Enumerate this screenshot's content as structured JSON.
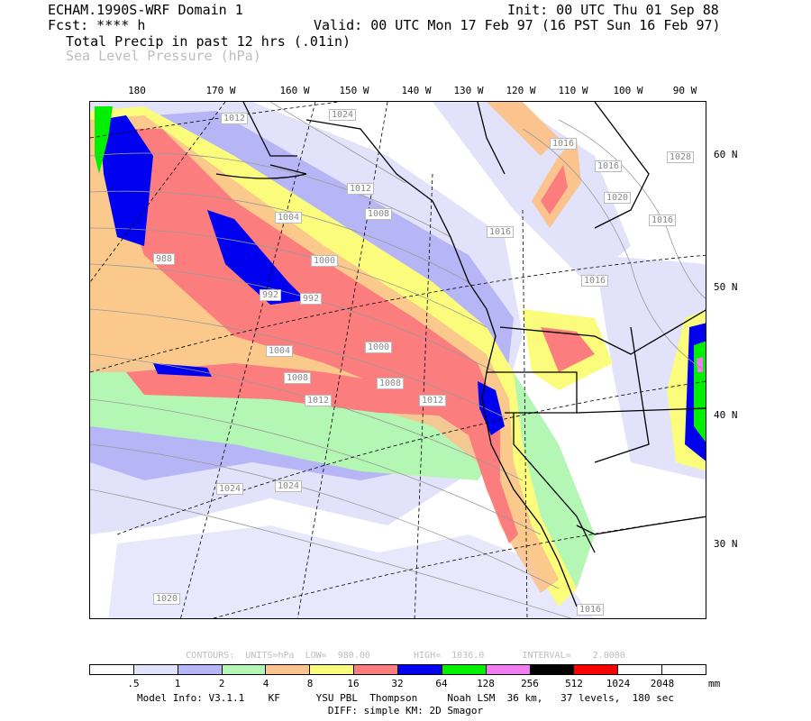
{
  "header": {
    "model": "ECHAM.1990S-WRF Domain 1",
    "init": "Init: 00 UTC Thu 01 Sep 88",
    "fcst": "Fcst: **** h",
    "valid": "Valid: 00 UTC Mon 17 Feb 97 (16 PST Sun 16 Feb 97)",
    "field1": "Total Precip in past 12 hrs (.01in)",
    "field2": "Sea Level Pressure (hPa)"
  },
  "lon_labels": [
    "180",
    "170 W",
    "160 W",
    "150 W",
    "140 W",
    "130 W",
    "120 W",
    "110 W",
    "100 W",
    "90 W"
  ],
  "lat_labels": [
    "60 N",
    "50 N",
    "40 N",
    "30 N"
  ],
  "pressure_labels": [
    "1024",
    "1012",
    "1016",
    "1016",
    "1028",
    "1012",
    "1008",
    "1004",
    "988",
    "992",
    "992",
    "1000",
    "1016",
    "1016",
    "1004",
    "1000",
    "1008",
    "1008",
    "1012",
    "1012",
    "1024",
    "1024",
    "1020",
    "1016",
    "1020",
    "1016"
  ],
  "contour_info": "CONTOURS:  UNITS=hPa  LOW=  980.00        HIGH=  1036.0       INTERVAL=    2.0000",
  "colorbar": {
    "colors": [
      "#ffffff",
      "#e2e2fb",
      "#b6b6f6",
      "#b4f6b4",
      "#fbc38e",
      "#fbfb7c",
      "#fb7d7d",
      "#0000f0",
      "#00f000",
      "#f07df0",
      "#000000",
      "#fb0000",
      "#ffffff",
      "#ffffff"
    ],
    "ticks": [
      ".5",
      "1",
      "2",
      "4",
      "8",
      "16",
      "32",
      "64",
      "128",
      "256",
      "512",
      "1024",
      "2048"
    ],
    "units": "mm"
  },
  "model_info": "Model Info: V3.1.1    KF      YSU PBL  Thompson     Noah LSM  36 km,   37 levels,  180 sec",
  "diff_info": "DIFF: simple KM: 2D Smagor"
}
